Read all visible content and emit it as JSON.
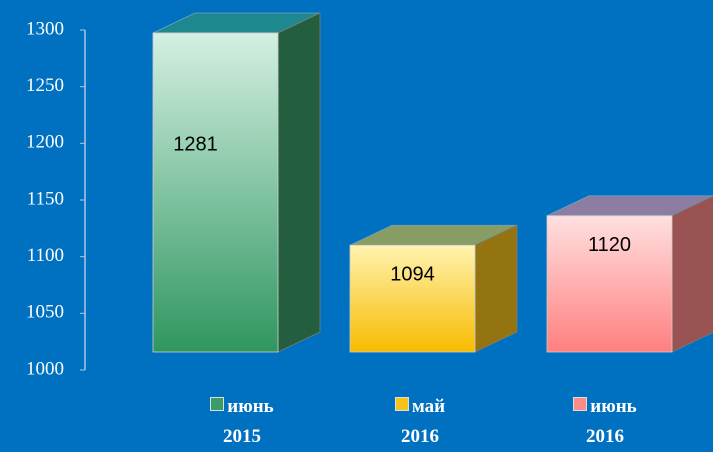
{
  "chart_data": {
    "type": "bar3d",
    "categories": [
      "июнь 2015",
      "май 2016",
      "июнь 2016"
    ],
    "values": [
      1281,
      1094,
      1120
    ],
    "colors": [
      "#3a9c68",
      "#f7c21a",
      "#ff8a8a"
    ],
    "ylim": [
      1000,
      1300
    ],
    "yticks": [
      1000,
      1050,
      1100,
      1150,
      1200,
      1250,
      1300
    ]
  }
}
